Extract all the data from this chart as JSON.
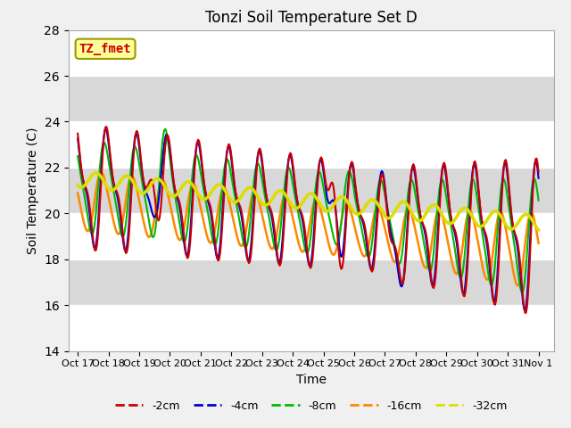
{
  "title": "Tonzi Soil Temperature Set D",
  "xlabel": "Time",
  "ylabel": "Soil Temperature (C)",
  "ylim": [
    14,
    28
  ],
  "yticks": [
    14,
    16,
    18,
    20,
    22,
    24,
    26,
    28
  ],
  "xtick_labels": [
    "Oct 17",
    "Oct 18",
    "Oct 19",
    "Oct 20",
    "Oct 21",
    "Oct 22",
    "Oct 23",
    "Oct 24",
    "Oct 25",
    "Oct 26",
    "Oct 27",
    "Oct 28",
    "Oct 29",
    "Oct 30",
    "Oct 31",
    "Nov 1"
  ],
  "legend_labels": [
    "-2cm",
    "-4cm",
    "-8cm",
    "-16cm",
    "-32cm"
  ],
  "legend_colors": [
    "#cc0000",
    "#0000cc",
    "#00bb00",
    "#ff8800",
    "#dddd00"
  ],
  "line_widths": [
    1.5,
    1.5,
    1.5,
    1.8,
    2.5
  ],
  "annotation_text": "TZ_fmet",
  "annotation_bg": "#ffff99",
  "annotation_border": "#999900",
  "bg_light": "#f0f0f0",
  "band_dark": "#d8d8d8",
  "n_points": 480
}
